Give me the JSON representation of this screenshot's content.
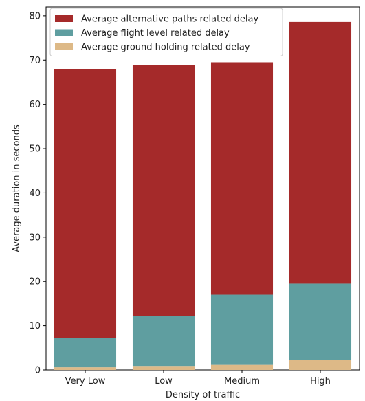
{
  "chart_data": {
    "type": "bar",
    "stacked": true,
    "title": "",
    "xlabel": "Density of traffic",
    "ylabel": "Average duration in seconds",
    "categories": [
      "Very Low",
      "Low",
      "Medium",
      "High"
    ],
    "ylim": [
      0,
      82
    ],
    "yticks": [
      0,
      10,
      20,
      30,
      40,
      50,
      60,
      70,
      80
    ],
    "grid": false,
    "legend_position": "top-left",
    "series": [
      {
        "name": "Average ground holding related delay",
        "color": "#ddb987",
        "values": [
          0.6,
          0.9,
          1.3,
          2.3
        ]
      },
      {
        "name": "Average flight level related delay",
        "color": "#5f9ea0",
        "values": [
          6.6,
          11.3,
          15.7,
          17.2
        ]
      },
      {
        "name": "Average alternative paths related delay",
        "color": "#a52a2a",
        "values": [
          60.7,
          56.7,
          52.5,
          59.1
        ]
      }
    ],
    "legend_order": [
      2,
      1,
      0
    ]
  }
}
